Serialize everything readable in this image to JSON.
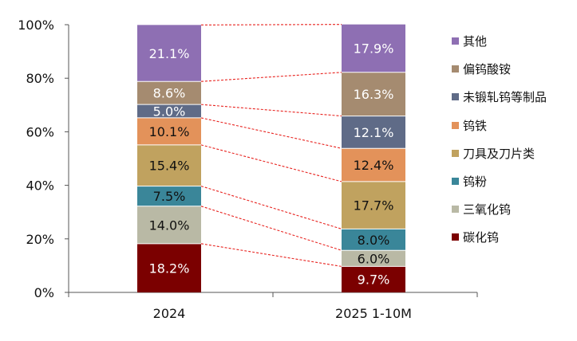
{
  "chart_data": {
    "type": "bar",
    "stacked": true,
    "categories": [
      "2024",
      "2025 1-10M"
    ],
    "series": [
      {
        "name": "碳化钨",
        "values": [
          18.2,
          9.7
        ],
        "labels": [
          "18.2%",
          "9.7%"
        ],
        "color": "#7b0000",
        "label_color": "#ffffff"
      },
      {
        "name": "三氧化钨",
        "values": [
          14.0,
          6.0
        ],
        "labels": [
          "14.0%",
          "6.0%"
        ],
        "color": "#b9b9a5",
        "label_color": "#111111"
      },
      {
        "name": "钨粉",
        "values": [
          7.5,
          8.0
        ],
        "labels": [
          "7.5%",
          "8.0%"
        ],
        "color": "#3a8699",
        "label_color": "#111111"
      },
      {
        "name": "刀具及刀片类",
        "values": [
          15.4,
          17.7
        ],
        "labels": [
          "15.4%",
          "17.7%"
        ],
        "color": "#c0a25f",
        "label_color": "#111111"
      },
      {
        "name": "钨铁",
        "values": [
          10.1,
          12.4
        ],
        "labels": [
          "10.1%",
          "12.4%"
        ],
        "color": "#e3925a",
        "label_color": "#111111"
      },
      {
        "name": "未锻轧钨等制品",
        "values": [
          5.0,
          12.1
        ],
        "labels": [
          "5.0%",
          "12.1%"
        ],
        "color": "#5f6b87",
        "label_color": "#ffffff"
      },
      {
        "name": "偏钨酸铵",
        "values": [
          8.6,
          16.3
        ],
        "labels": [
          "8.6%",
          "16.3%"
        ],
        "color": "#a58b70",
        "label_color": "#ffffff"
      },
      {
        "name": "其他",
        "values": [
          21.1,
          17.9
        ],
        "labels": [
          "21.1%",
          "17.9%"
        ],
        "color": "#8e6fb3",
        "label_color": "#ffffff"
      }
    ],
    "ylim": [
      0,
      100
    ],
    "yticks": [
      "0%",
      "20%",
      "40%",
      "60%",
      "80%",
      "100%"
    ],
    "connector_color": "#e8231f",
    "legend_position": "right"
  },
  "legend": [
    {
      "label": "其他",
      "color": "#8e6fb3"
    },
    {
      "label": "偏钨酸铵",
      "color": "#a58b70"
    },
    {
      "label": "未锻轧钨等制品",
      "color": "#5f6b87"
    },
    {
      "label": "钨铁",
      "color": "#e3925a"
    },
    {
      "label": "刀具及刀片类",
      "color": "#c0a25f"
    },
    {
      "label": "钨粉",
      "color": "#3a8699"
    },
    {
      "label": "三氧化钨",
      "color": "#b9b9a5"
    },
    {
      "label": "碳化钨",
      "color": "#7b0000"
    }
  ]
}
